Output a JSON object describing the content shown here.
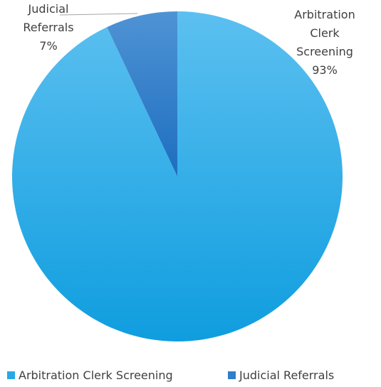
{
  "chart_data": {
    "type": "pie",
    "categories": [
      "Arbitration Clerk Screening",
      "Judicial Referrals"
    ],
    "values": [
      93,
      7
    ],
    "value_labels": [
      "93%",
      "7%"
    ],
    "colors": [
      "#29a8e6",
      "#2f7fcb"
    ],
    "legend": "bottom"
  }
}
